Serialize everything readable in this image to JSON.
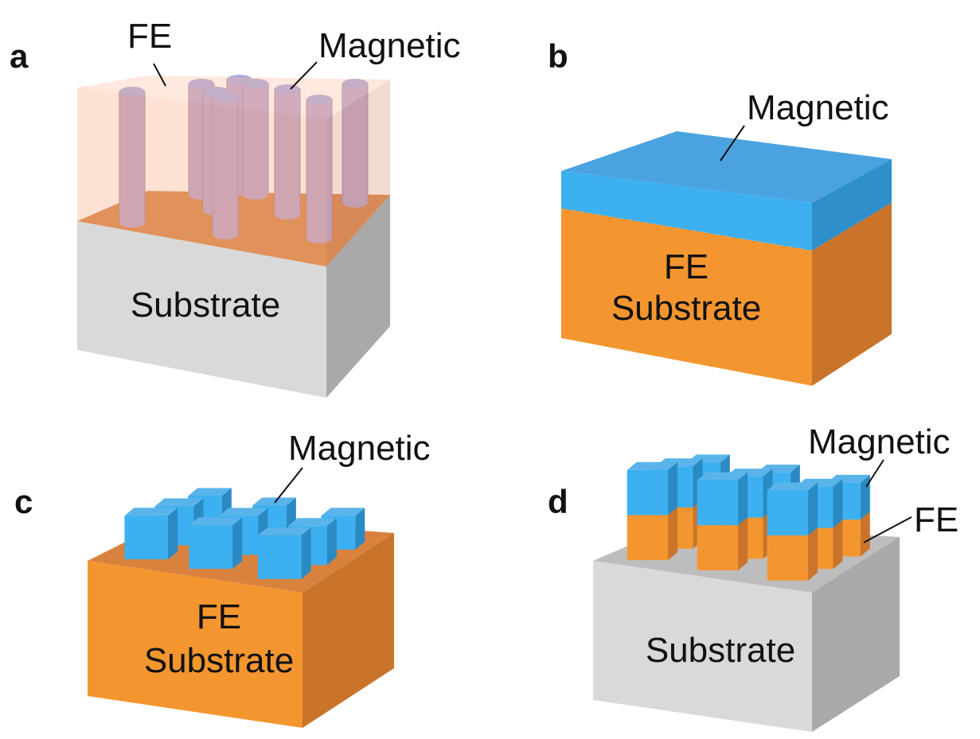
{
  "panels": [
    {
      "letter": "a",
      "labels": [
        "FE",
        "Magnetic"
      ],
      "block_label": [
        "Substrate"
      ]
    },
    {
      "letter": "b",
      "labels": [
        "Magnetic"
      ],
      "block_label": [
        "FE",
        "Substrate"
      ]
    },
    {
      "letter": "c",
      "labels": [
        "Magnetic"
      ],
      "block_label": [
        "FE",
        "Substrate"
      ]
    },
    {
      "letter": "d",
      "labels": [
        "Magnetic",
        "FE"
      ],
      "block_label": [
        "Substrate"
      ]
    }
  ]
}
